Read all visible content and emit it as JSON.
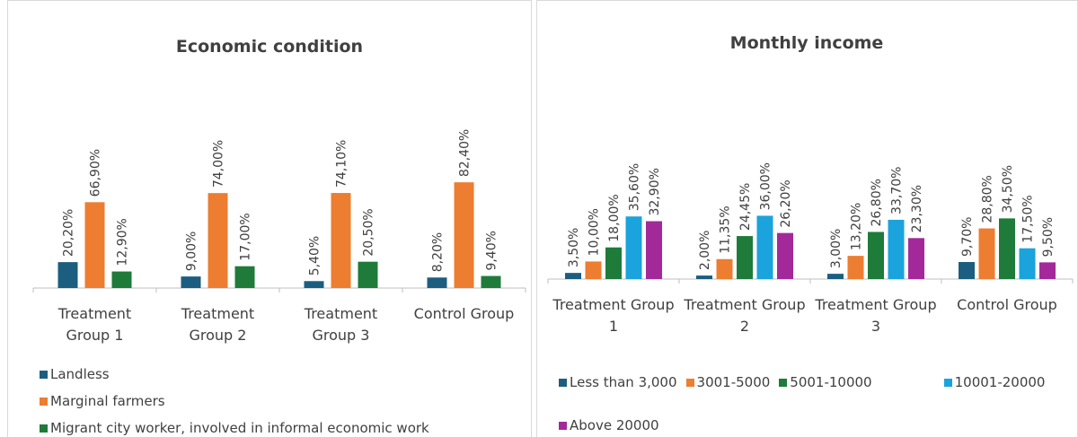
{
  "chart_data": [
    {
      "type": "bar",
      "title": "Economic condition",
      "categories": [
        "Treatment Group 1",
        "Treatment Group 2",
        "Treatment Group 3",
        "Control Group"
      ],
      "series": [
        {
          "name": "Landless",
          "color": "#1b5e80",
          "values": [
            20.2,
            9,
            5.4,
            8.2
          ],
          "value_labels": [
            "20,20%",
            "9,00%",
            "5,40%",
            "8,20%"
          ]
        },
        {
          "name": "Marginal farmers",
          "color": "#ed7d31",
          "values": [
            66.9,
            74,
            74.1,
            82.4
          ],
          "value_labels": [
            "66,90%",
            "74,00%",
            "74,10%",
            "82,40%"
          ]
        },
        {
          "name": "Migrant city worker, involved in informal economic work",
          "color": "#1e7b3a",
          "values": [
            12.9,
            17,
            20.5,
            9.4
          ],
          "value_labels": [
            "12,90%",
            "17,00%",
            "20,50%",
            "9,40%"
          ]
        }
      ]
    },
    {
      "type": "bar",
      "title": "Monthly income",
      "categories": [
        "Treatment Group 1",
        "Treatment Group 2",
        "Treatment Group 3",
        "Control Group"
      ],
      "series": [
        {
          "name": "Less than 3,000",
          "color": "#1b5e80",
          "values": [
            3.5,
            2,
            3,
            9.7
          ],
          "value_labels": [
            "3,50%",
            "2,00%",
            "3,00%",
            "9,70%"
          ]
        },
        {
          "name": "3001-5000",
          "color": "#ed7d31",
          "values": [
            10,
            11.35,
            13.2,
            28.8
          ],
          "value_labels": [
            "10,00%",
            "11,35%",
            "13,20%",
            "28,80%"
          ]
        },
        {
          "name": "5001-10000",
          "color": "#1e7b3a",
          "values": [
            18,
            24.45,
            26.8,
            34.5
          ],
          "value_labels": [
            "18,00%",
            "24,45%",
            "26,80%",
            "34,50%"
          ]
        },
        {
          "name": "10001-20000",
          "color": "#1aa3dc",
          "values": [
            35.6,
            36,
            33.7,
            17.5
          ],
          "value_labels": [
            "35,60%",
            "36,00%",
            "33,70%",
            "17,50%"
          ]
        },
        {
          "name": "Above 20000",
          "color": "#a3299a",
          "values": [
            32.9,
            26.2,
            23.3,
            9.5
          ],
          "value_labels": [
            "32,90%",
            "26,20%",
            "23,30%",
            "9,50%"
          ]
        }
      ]
    }
  ]
}
